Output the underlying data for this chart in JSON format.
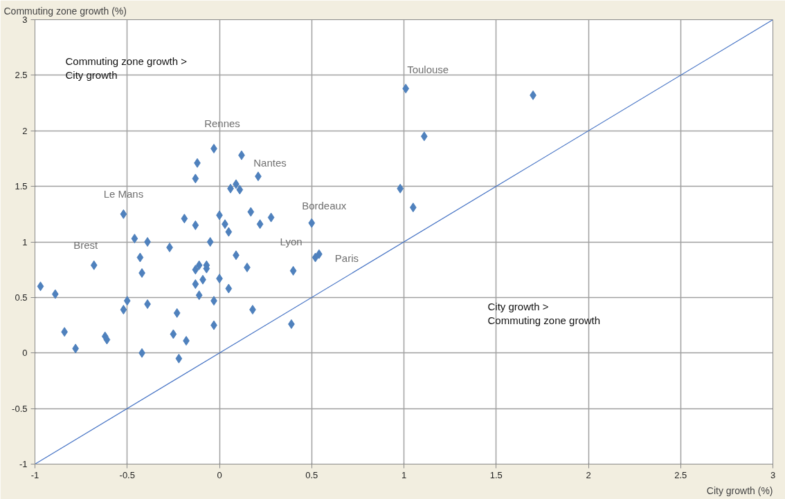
{
  "chart_data": {
    "type": "scatter",
    "xlabel": "City growth (%)",
    "ylabel": "Commuting zone growth (%)",
    "xlim": [
      -1,
      3
    ],
    "ylim": [
      -1,
      3
    ],
    "xticks": [
      -1,
      -0.5,
      0,
      0.5,
      1,
      1.5,
      2,
      2.5,
      3
    ],
    "yticks": [
      -1,
      -0.5,
      0,
      0.5,
      1,
      1.5,
      2,
      2.5,
      3
    ],
    "grid": true,
    "marker": "diamond",
    "series": [
      {
        "color": "#4f81bd",
        "x": [
          -0.97,
          -0.89,
          -0.84,
          -0.78,
          -0.68,
          -0.62,
          -0.61,
          -0.52,
          -0.52,
          -0.5,
          -0.46,
          -0.43,
          -0.42,
          -0.42,
          -0.39,
          -0.39,
          -0.27,
          -0.23,
          -0.25,
          -0.22,
          -0.19,
          -0.18,
          -0.12,
          -0.13,
          -0.13,
          -0.13,
          -0.11,
          -0.13,
          -0.11,
          -0.09,
          -0.07,
          -0.07,
          -0.05,
          -0.03,
          -0.03,
          -0.03,
          0.0,
          0.0,
          0.03,
          0.05,
          0.06,
          0.05,
          0.09,
          0.11,
          0.12,
          0.09,
          0.15,
          0.17,
          0.18,
          0.21,
          0.22,
          0.28,
          0.4,
          0.39,
          0.5,
          0.52,
          0.54,
          0.98,
          1.01,
          1.05,
          1.11,
          1.7
        ],
        "values": [
          0.6,
          0.53,
          0.19,
          0.04,
          0.79,
          0.15,
          0.12,
          1.25,
          0.39,
          0.47,
          1.03,
          0.86,
          0.72,
          0.0,
          1.0,
          0.44,
          0.95,
          0.36,
          0.17,
          -0.05,
          1.21,
          0.11,
          1.71,
          1.57,
          1.15,
          0.75,
          0.79,
          0.62,
          0.52,
          0.66,
          0.76,
          0.79,
          1.0,
          1.84,
          0.47,
          0.25,
          1.24,
          0.67,
          1.16,
          1.09,
          1.48,
          0.58,
          1.52,
          1.47,
          1.78,
          0.88,
          0.77,
          1.27,
          0.39,
          1.59,
          1.16,
          1.22,
          0.74,
          0.26,
          1.17,
          0.86,
          0.89,
          1.48,
          2.38,
          1.31,
          1.95,
          2.32
        ]
      },
      {
        "type": "line",
        "marker": "none",
        "color": "#4472c4",
        "x": [
          -1,
          3
        ],
        "values": [
          -1,
          3
        ]
      }
    ],
    "annotations": [
      "Commuting zone growth >\nCity growth",
      "City growth >\nCommuting zone growth",
      {
        "text": "Toulouse",
        "x": 1.01,
        "y": 2.38
      },
      {
        "text": "Rennes",
        "x": -0.03,
        "y": 1.84
      },
      {
        "text": "Nantes",
        "x": 0.21,
        "y": 1.59
      },
      {
        "text": "Le Mans",
        "x": -0.52,
        "y": 1.25
      },
      {
        "text": "Bordeaux",
        "x": 0.5,
        "y": 1.17
      },
      {
        "text": "Brest",
        "x": -0.68,
        "y": 0.79
      },
      {
        "text": "Lyon",
        "x": 0.4,
        "y": 0.74
      },
      {
        "text": "Paris",
        "x": 0.54,
        "y": 0.89
      }
    ]
  }
}
